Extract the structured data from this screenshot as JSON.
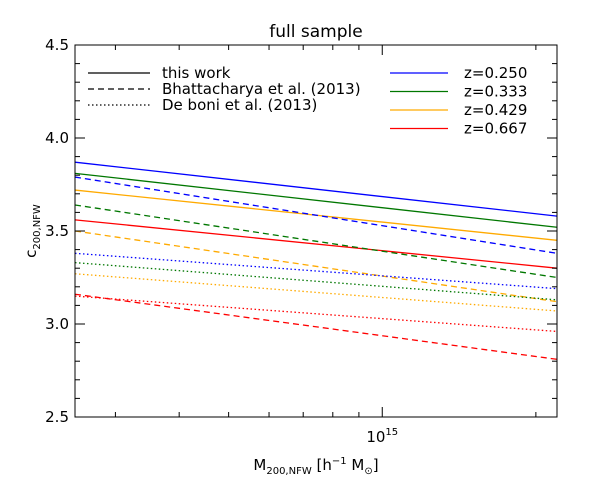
{
  "chart_data": {
    "type": "line",
    "title": "full sample",
    "xlabel_main": "M",
    "xlabel_sub": "200,NFW",
    "xlabel_tail": " [h",
    "xlabel_sup": "−1",
    "xlabel_end": " M",
    "xlabel_sun": "⊙",
    "xlabel_close": "]",
    "ylabel_main": "c",
    "ylabel_sub": "200,NFW",
    "xscale": "log",
    "xlim": [
      250000000000000.0,
      2200000000000000.0
    ],
    "ylim": [
      2.5,
      4.5
    ],
    "ymajor_ticks": [
      2.5,
      3.0,
      3.5,
      4.0,
      4.5
    ],
    "ytick_labels": [
      "2.5",
      "3.0",
      "3.5",
      "4.0",
      "4.5"
    ],
    "xtick_major": [
      1000000000000000.0
    ],
    "xtick_base": "10",
    "xtick_exp": "15",
    "styles": [
      {
        "name": "this work",
        "dash": "solid"
      },
      {
        "name": "Bhattacharya et al. (2013)",
        "dash": "dashed"
      },
      {
        "name": "De boni et al. (2013)",
        "dash": "dotted"
      }
    ],
    "redshifts": [
      {
        "label": "z=0.250",
        "color": "#0000ff"
      },
      {
        "label": "z=0.333",
        "color": "#007700"
      },
      {
        "label": "z=0.429",
        "color": "#ffaa00"
      },
      {
        "label": "z=0.667",
        "color": "#ff0000"
      }
    ],
    "series": [
      {
        "style": "solid",
        "z": "z=0.250",
        "x": [
          250000000000000.0,
          2200000000000000.0
        ],
        "y": [
          3.87,
          3.58
        ]
      },
      {
        "style": "solid",
        "z": "z=0.333",
        "x": [
          250000000000000.0,
          2200000000000000.0
        ],
        "y": [
          3.81,
          3.52
        ]
      },
      {
        "style": "solid",
        "z": "z=0.429",
        "x": [
          250000000000000.0,
          2200000000000000.0
        ],
        "y": [
          3.72,
          3.45
        ]
      },
      {
        "style": "solid",
        "z": "z=0.667",
        "x": [
          250000000000000.0,
          2200000000000000.0
        ],
        "y": [
          3.56,
          3.3
        ]
      },
      {
        "style": "dashed",
        "z": "z=0.250",
        "x": [
          250000000000000.0,
          2200000000000000.0
        ],
        "y": [
          3.79,
          3.38
        ]
      },
      {
        "style": "dashed",
        "z": "z=0.333",
        "x": [
          250000000000000.0,
          2200000000000000.0
        ],
        "y": [
          3.64,
          3.25
        ]
      },
      {
        "style": "dashed",
        "z": "z=0.429",
        "x": [
          250000000000000.0,
          2200000000000000.0
        ],
        "y": [
          3.5,
          3.12
        ]
      },
      {
        "style": "dashed",
        "z": "z=0.667",
        "x": [
          250000000000000.0,
          2200000000000000.0
        ],
        "y": [
          3.16,
          2.81
        ]
      },
      {
        "style": "dotted",
        "z": "z=0.250",
        "x": [
          250000000000000.0,
          2200000000000000.0
        ],
        "y": [
          3.38,
          3.19
        ]
      },
      {
        "style": "dotted",
        "z": "z=0.333",
        "x": [
          250000000000000.0,
          2200000000000000.0
        ],
        "y": [
          3.33,
          3.13
        ]
      },
      {
        "style": "dotted",
        "z": "z=0.429",
        "x": [
          250000000000000.0,
          2200000000000000.0
        ],
        "y": [
          3.27,
          3.07
        ]
      },
      {
        "style": "dotted",
        "z": "z=0.667",
        "x": [
          250000000000000.0,
          2200000000000000.0
        ],
        "y": [
          3.15,
          2.96
        ]
      }
    ]
  }
}
